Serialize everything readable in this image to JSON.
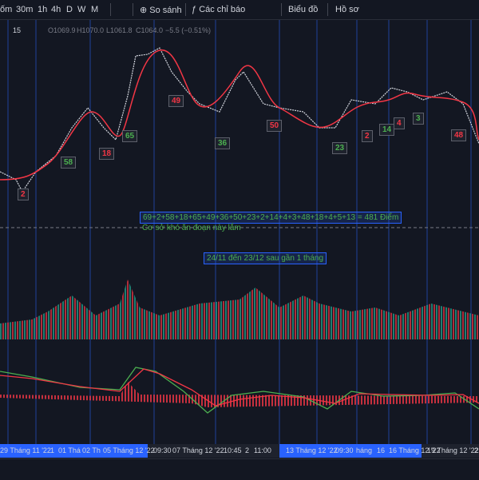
{
  "toolbar": {
    "items": [
      "ốm",
      "30m",
      "1h",
      "4h",
      "D",
      "W",
      "M",
      "So sánh",
      "Các chỉ báo",
      "Biểu đồ",
      "Hồ sơ"
    ]
  },
  "legend": {
    "interval": "15",
    "open": "O1069.9",
    "high": "H1070.0",
    "low": "L1061.8",
    "close": "C1064.0",
    "change": "−5.5 (−0.51%)"
  },
  "labels": [
    "2",
    "58",
    "18",
    "65",
    "49",
    "36",
    "50",
    "23",
    "2",
    "14",
    "4",
    "3",
    "48"
  ],
  "notes": {
    "sum": "69+2+58+18+65+49+36+50+23+2+14+4+3+48+18+4+5+13 = 481 Điểm",
    "comment": "Cơ sở khó ăn đoạn này lắm",
    "period": "24/11 đến 23/12 sau gần 1 tháng"
  },
  "x_axis": [
    "29 Tháng 11 '22",
    "1",
    "01 Thá",
    "02 Th",
    "05 Tháng 12 '22",
    "09:30",
    "07 Tháng 12 '22",
    "10:45",
    "2",
    "11:00",
    "13 Tháng 12 '22",
    "09:30",
    "háng",
    "16",
    "16 Tháng 12 '22",
    "19 Tháng 12 '22",
    "2"
  ]
}
